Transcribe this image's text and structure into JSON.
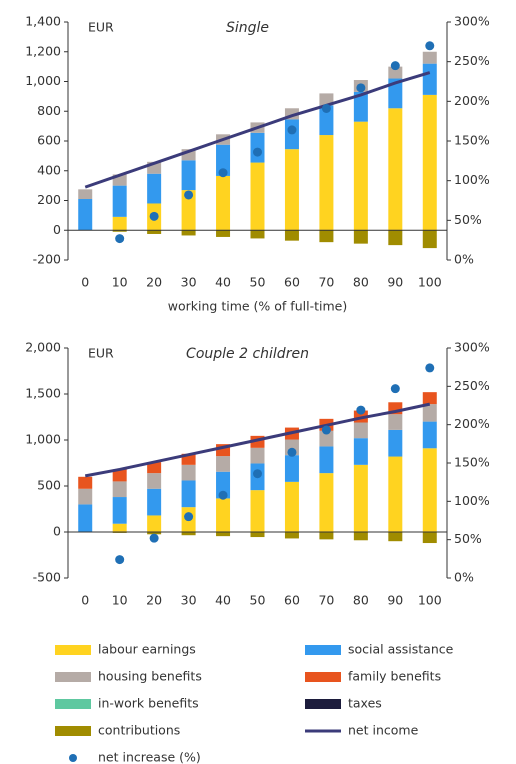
{
  "chart_data": [
    {
      "type": "bar",
      "title": "Single",
      "ylabel": "EUR",
      "xlabel": "working time (% of full-time)",
      "categories": [
        "0",
        "10",
        "20",
        "30",
        "40",
        "50",
        "60",
        "70",
        "80",
        "90",
        "100"
      ],
      "ylim": [
        -200,
        1400
      ],
      "yticks": [
        -200,
        0,
        200,
        400,
        600,
        800,
        {
          "value": 1000,
          "label": "1,000"
        },
        {
          "value": 1200,
          "label": "1,200"
        },
        {
          "value": 1400,
          "label": "1,400"
        }
      ],
      "y2lim": [
        0,
        300
      ],
      "y2ticks": [
        {
          "value": 0,
          "label": "0%"
        },
        {
          "value": 50,
          "label": "50%"
        },
        {
          "value": 100,
          "label": "100%"
        },
        {
          "value": 150,
          "label": "150%"
        },
        {
          "value": 200,
          "label": "200%"
        },
        {
          "value": 250,
          "label": "250%"
        },
        {
          "value": 300,
          "label": "300%"
        }
      ],
      "series": [
        {
          "name": "labour earnings",
          "type": "bar",
          "color": "#ffd320",
          "values": [
            0,
            90,
            180,
            270,
            365,
            455,
            545,
            640,
            730,
            820,
            910
          ]
        },
        {
          "name": "social assistance",
          "type": "bar",
          "color": "#3399ee",
          "values": [
            210,
            210,
            200,
            200,
            210,
            200,
            200,
            200,
            200,
            200,
            210
          ]
        },
        {
          "name": "housing benefits",
          "type": "bar",
          "color": "#b5aba6",
          "values": [
            65,
            75,
            80,
            75,
            70,
            70,
            75,
            80,
            80,
            80,
            80
          ]
        },
        {
          "name": "family benefits",
          "type": "bar",
          "color": "#e8541e",
          "values": [
            0,
            0,
            0,
            0,
            0,
            0,
            0,
            0,
            0,
            0,
            0
          ]
        },
        {
          "name": "in-work benefits",
          "type": "bar",
          "color": "#5ec8a0",
          "values": [
            0,
            0,
            0,
            0,
            0,
            0,
            0,
            0,
            0,
            0,
            0
          ]
        },
        {
          "name": "taxes",
          "type": "bar",
          "color": "#1c1c3c",
          "values": [
            0,
            0,
            0,
            0,
            0,
            0,
            0,
            0,
            0,
            0,
            0
          ]
        },
        {
          "name": "contributions",
          "type": "bar",
          "color": "#a08c00",
          "values": [
            0,
            -10,
            -25,
            -35,
            -45,
            -55,
            -70,
            -80,
            -90,
            -100,
            -120
          ]
        },
        {
          "name": "net income",
          "type": "line",
          "color": "#3b3b7a",
          "values": [
            290,
            370,
            450,
            530,
            610,
            690,
            770,
            840,
            910,
            990,
            1060
          ]
        },
        {
          "name": "net increase (%)",
          "type": "scatter",
          "axis": "y2",
          "color": "#1f6fb5",
          "values": [
            null,
            27,
            55,
            82,
            110,
            136,
            164,
            191,
            217,
            245,
            270
          ]
        }
      ]
    },
    {
      "type": "bar",
      "title": "Couple 2 children",
      "ylabel": "EUR",
      "categories": [
        "0",
        "10",
        "20",
        "30",
        "40",
        "50",
        "60",
        "70",
        "80",
        "90",
        "100"
      ],
      "ylim": [
        -500,
        2000
      ],
      "yticks": [
        -500,
        0,
        500,
        {
          "value": 1000,
          "label": "1,000"
        },
        {
          "value": 1500,
          "label": "1,500"
        },
        {
          "value": 2000,
          "label": "2,000"
        }
      ],
      "y2lim": [
        0,
        300
      ],
      "y2ticks": [
        {
          "value": 0,
          "label": "0%"
        },
        {
          "value": 50,
          "label": "50%"
        },
        {
          "value": 100,
          "label": "100%"
        },
        {
          "value": 150,
          "label": "150%"
        },
        {
          "value": 200,
          "label": "200%"
        },
        {
          "value": 250,
          "label": "250%"
        },
        {
          "value": 300,
          "label": "300%"
        }
      ],
      "series": [
        {
          "name": "labour earnings",
          "type": "bar",
          "color": "#ffd320",
          "values": [
            0,
            90,
            180,
            270,
            365,
            455,
            545,
            640,
            730,
            820,
            910
          ]
        },
        {
          "name": "social assistance",
          "type": "bar",
          "color": "#3399ee",
          "values": [
            300,
            290,
            290,
            290,
            290,
            290,
            290,
            290,
            290,
            290,
            290
          ]
        },
        {
          "name": "housing benefits",
          "type": "bar",
          "color": "#b5aba6",
          "values": [
            170,
            170,
            170,
            170,
            170,
            170,
            170,
            170,
            170,
            170,
            190
          ]
        },
        {
          "name": "family benefits",
          "type": "bar",
          "color": "#e8541e",
          "values": [
            130,
            130,
            120,
            120,
            130,
            130,
            130,
            130,
            130,
            130,
            130
          ]
        },
        {
          "name": "in-work benefits",
          "type": "bar",
          "color": "#5ec8a0",
          "values": [
            0,
            0,
            0,
            0,
            0,
            0,
            0,
            0,
            0,
            0,
            0
          ]
        },
        {
          "name": "taxes",
          "type": "bar",
          "color": "#1c1c3c",
          "values": [
            0,
            0,
            0,
            0,
            0,
            0,
            0,
            0,
            0,
            0,
            0
          ]
        },
        {
          "name": "contributions",
          "type": "bar",
          "color": "#a08c00",
          "values": [
            0,
            -10,
            -25,
            -35,
            -45,
            -55,
            -70,
            -80,
            -90,
            -100,
            -120
          ]
        },
        {
          "name": "net income",
          "type": "line",
          "color": "#3b3b7a",
          "values": [
            610,
            680,
            760,
            840,
            920,
            1000,
            1080,
            1160,
            1240,
            1310,
            1390
          ]
        },
        {
          "name": "net increase (%)",
          "type": "scatter",
          "axis": "y2",
          "color": "#1f6fb5",
          "values": [
            null,
            24,
            52,
            80,
            108,
            136,
            164,
            193,
            219,
            247,
            274
          ]
        }
      ]
    }
  ]
}
